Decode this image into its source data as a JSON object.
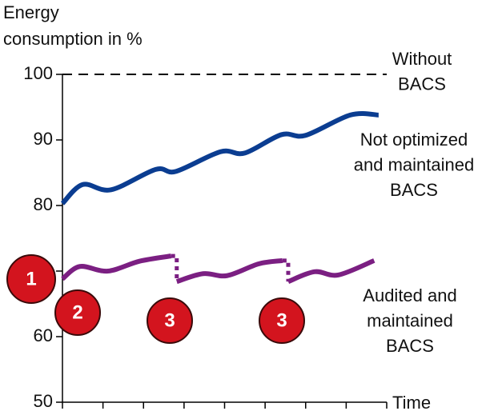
{
  "chart_data": {
    "type": "line",
    "y_label": [
      "Energy",
      "consumption in %"
    ],
    "x_label": "Time",
    "xlim": [
      0,
      8
    ],
    "xticks": [
      0,
      1,
      2,
      3,
      4,
      5,
      6,
      7,
      8
    ],
    "ylim": [
      50,
      100
    ],
    "yticks": [
      50,
      60,
      70,
      80,
      90,
      100
    ],
    "series": [
      {
        "name": [
          "Without",
          "BACS"
        ],
        "color": "#000000",
        "dash": true,
        "x": [
          0,
          8
        ],
        "values": [
          100,
          100
        ]
      },
      {
        "name": [
          "Not optimized",
          "and maintained",
          "BACS"
        ],
        "color": "#0b3d91",
        "x": [
          0,
          0.5,
          1.2,
          2.3,
          2.8,
          3.9,
          4.5,
          5.4,
          6,
          7.1,
          7.8
        ],
        "values": [
          80.3,
          83.2,
          82.4,
          85.5,
          85.2,
          88.2,
          88,
          90.8,
          90.7,
          93.8,
          93.8
        ]
      },
      {
        "name": [
          "Audited and",
          "maintained",
          "BACS"
        ],
        "color": "#7b1f82",
        "x": [
          0,
          0.43,
          1.12,
          1.9,
          2.68,
          null,
          2.82,
          3.47,
          4.06,
          4.84,
          5.43,
          null,
          5.57,
          6.22,
          6.8,
          7.69
        ],
        "values": [
          68.8,
          70.7,
          70,
          71.5,
          72.3,
          null,
          68.4,
          69.6,
          69.3,
          71.1,
          71.6,
          null,
          68.4,
          69.9,
          69.4,
          71.6
        ]
      }
    ],
    "markers": [
      "1",
      "2",
      "3",
      "3"
    ]
  }
}
